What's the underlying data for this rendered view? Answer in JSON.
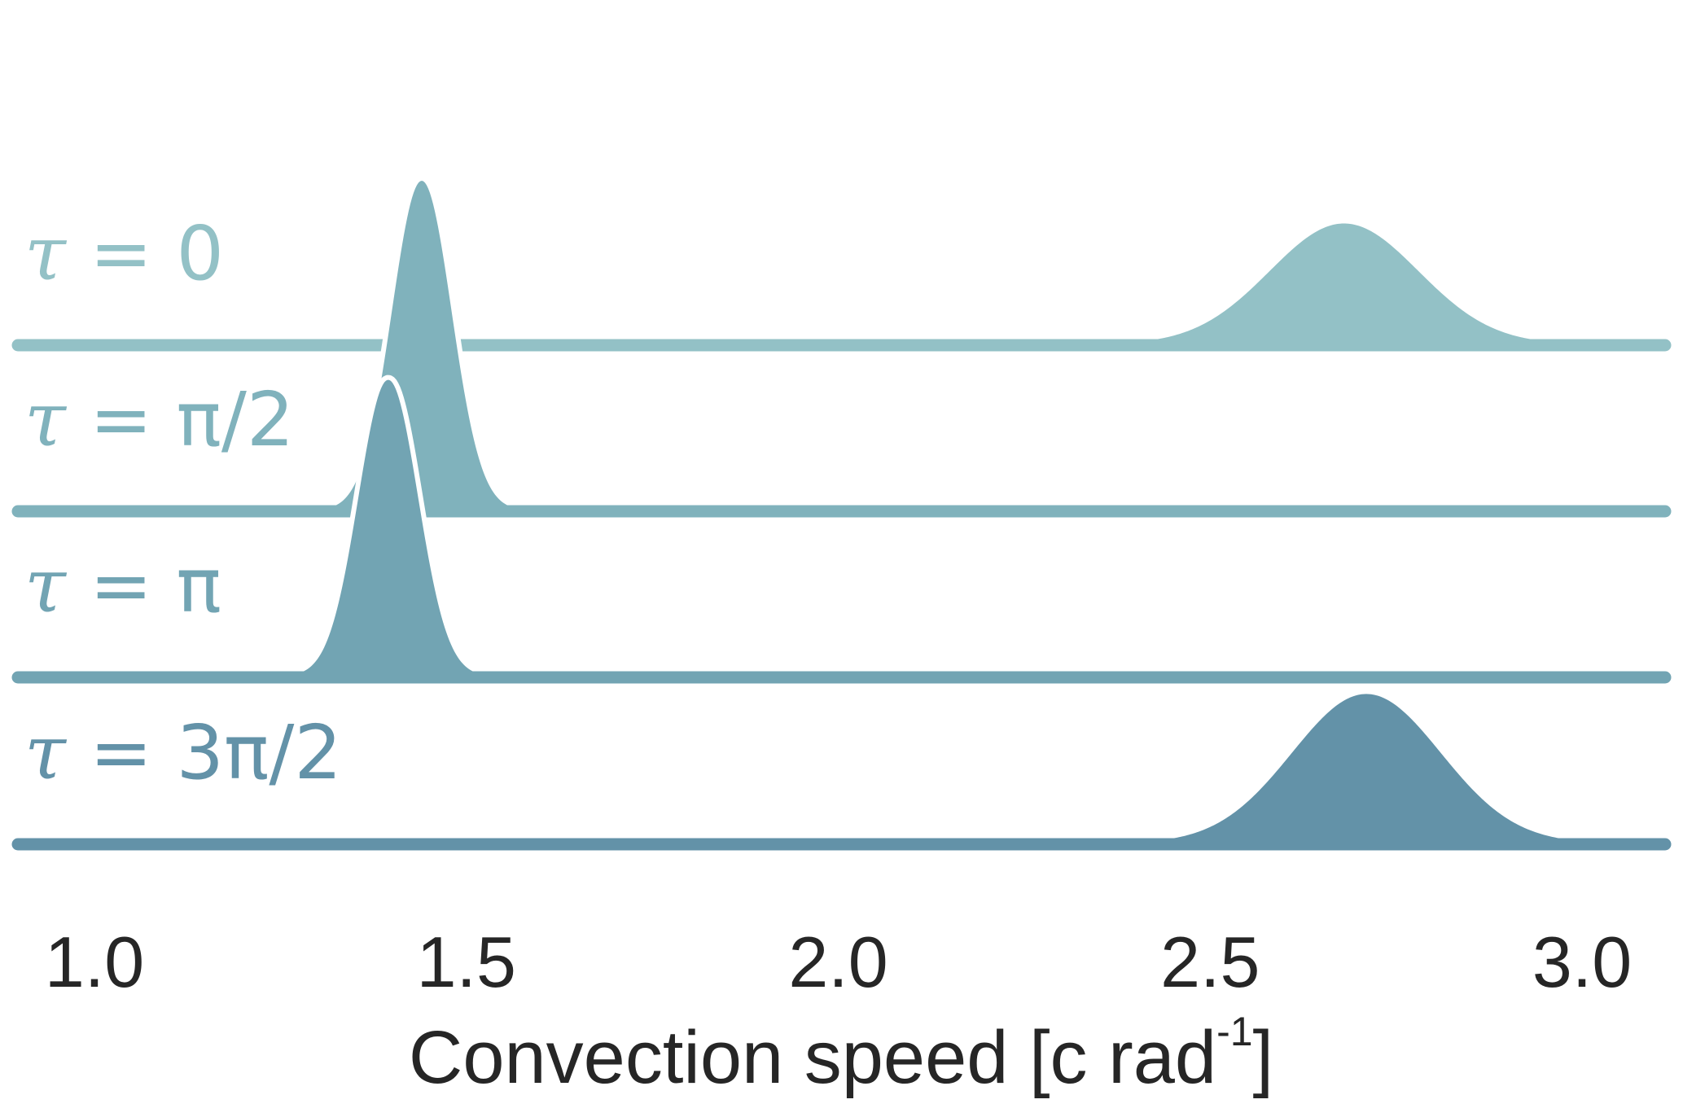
{
  "chart_data": {
    "type": "area",
    "subtype": "ridgeline",
    "title": "",
    "xlabel": "Convection  speed [c rad",
    "xlabel_superscript": "-1",
    "xlabel_close": "]",
    "xlim": [
      1.0,
      3.0
    ],
    "xticks": [
      1.0,
      1.5,
      2.0,
      2.5,
      3.0
    ],
    "xtick_labels": [
      "1.0",
      "1.5",
      "2.0",
      "2.5",
      "3.0"
    ],
    "grid": false,
    "legend": "none",
    "series": [
      {
        "label_prefix": "τ",
        "label_rest": " = 0",
        "color": "#93c1c6",
        "peaks": [
          {
            "center": 2.68,
            "sigma": 0.1,
            "relative_height": 0.55
          }
        ]
      },
      {
        "label_prefix": "τ",
        "label_rest": " = π/2",
        "color": "#80b2bc",
        "peaks": [
          {
            "center": 1.44,
            "sigma": 0.04,
            "relative_height": 1.5
          }
        ]
      },
      {
        "label_prefix": "τ",
        "label_rest": " = π",
        "color": "#72a4b3",
        "peaks": [
          {
            "center": 1.395,
            "sigma": 0.04,
            "relative_height": 1.35
          }
        ]
      },
      {
        "label_prefix": "τ",
        "label_rest": " = 3π/2",
        "color": "#6392a8",
        "peaks": [
          {
            "center": 2.71,
            "sigma": 0.1,
            "relative_height": 0.68
          }
        ]
      }
    ]
  }
}
